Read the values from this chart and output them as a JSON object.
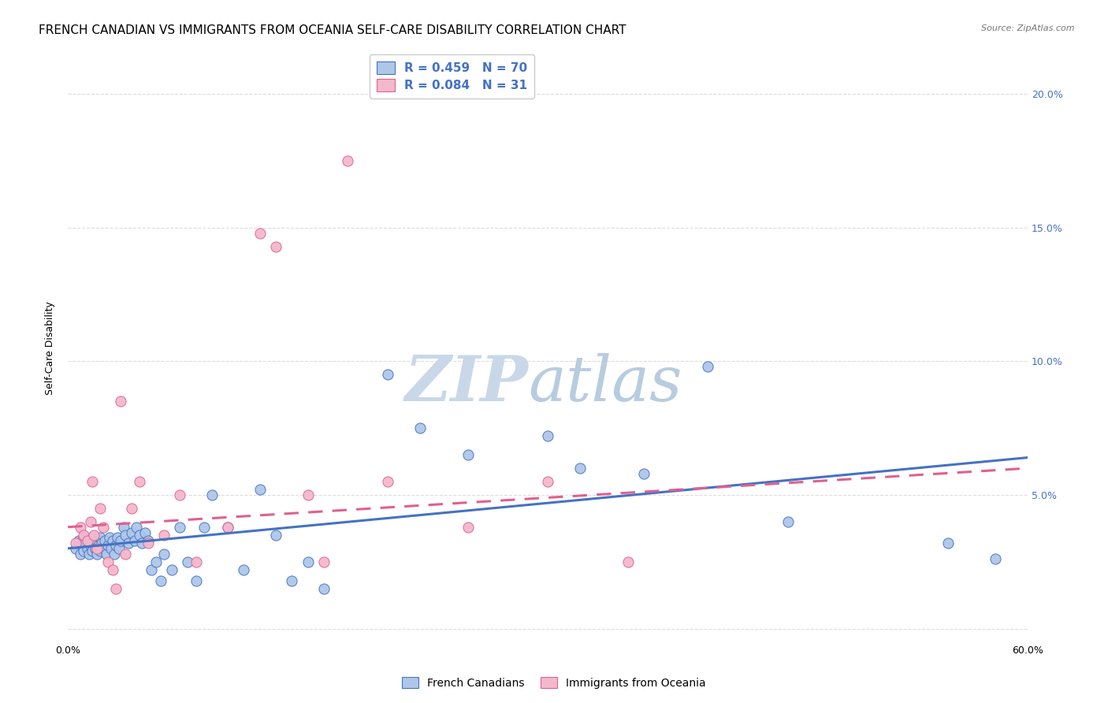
{
  "title": "FRENCH CANADIAN VS IMMIGRANTS FROM OCEANIA SELF-CARE DISABILITY CORRELATION CHART",
  "source": "Source: ZipAtlas.com",
  "ylabel": "Self-Care Disability",
  "x_min": 0.0,
  "x_max": 0.6,
  "y_min": -0.005,
  "y_max": 0.215,
  "blue_color": "#4472c4",
  "pink_color": "#e06090",
  "scatter_blue_color": "#aec6e8",
  "scatter_pink_color": "#f4b8cc",
  "blue_scatter": [
    [
      0.005,
      0.03
    ],
    [
      0.007,
      0.033
    ],
    [
      0.008,
      0.028
    ],
    [
      0.009,
      0.031
    ],
    [
      0.01,
      0.034
    ],
    [
      0.01,
      0.029
    ],
    [
      0.011,
      0.032
    ],
    [
      0.012,
      0.03
    ],
    [
      0.013,
      0.033
    ],
    [
      0.013,
      0.028
    ],
    [
      0.014,
      0.031
    ],
    [
      0.015,
      0.034
    ],
    [
      0.015,
      0.029
    ],
    [
      0.016,
      0.032
    ],
    [
      0.017,
      0.03
    ],
    [
      0.018,
      0.033
    ],
    [
      0.018,
      0.028
    ],
    [
      0.019,
      0.031
    ],
    [
      0.02,
      0.034
    ],
    [
      0.02,
      0.029
    ],
    [
      0.021,
      0.032
    ],
    [
      0.022,
      0.03
    ],
    [
      0.023,
      0.033
    ],
    [
      0.024,
      0.028
    ],
    [
      0.025,
      0.031
    ],
    [
      0.026,
      0.034
    ],
    [
      0.027,
      0.03
    ],
    [
      0.028,
      0.033
    ],
    [
      0.029,
      0.028
    ],
    [
      0.03,
      0.031
    ],
    [
      0.031,
      0.034
    ],
    [
      0.032,
      0.03
    ],
    [
      0.033,
      0.033
    ],
    [
      0.035,
      0.038
    ],
    [
      0.036,
      0.035
    ],
    [
      0.038,
      0.032
    ],
    [
      0.04,
      0.036
    ],
    [
      0.042,
      0.033
    ],
    [
      0.043,
      0.038
    ],
    [
      0.045,
      0.035
    ],
    [
      0.046,
      0.032
    ],
    [
      0.048,
      0.036
    ],
    [
      0.05,
      0.033
    ],
    [
      0.052,
      0.022
    ],
    [
      0.055,
      0.025
    ],
    [
      0.058,
      0.018
    ],
    [
      0.06,
      0.028
    ],
    [
      0.065,
      0.022
    ],
    [
      0.07,
      0.038
    ],
    [
      0.075,
      0.025
    ],
    [
      0.08,
      0.018
    ],
    [
      0.085,
      0.038
    ],
    [
      0.09,
      0.05
    ],
    [
      0.1,
      0.038
    ],
    [
      0.11,
      0.022
    ],
    [
      0.12,
      0.052
    ],
    [
      0.13,
      0.035
    ],
    [
      0.14,
      0.018
    ],
    [
      0.15,
      0.025
    ],
    [
      0.16,
      0.015
    ],
    [
      0.2,
      0.095
    ],
    [
      0.22,
      0.075
    ],
    [
      0.25,
      0.065
    ],
    [
      0.3,
      0.072
    ],
    [
      0.32,
      0.06
    ],
    [
      0.36,
      0.058
    ],
    [
      0.4,
      0.098
    ],
    [
      0.45,
      0.04
    ],
    [
      0.55,
      0.032
    ],
    [
      0.58,
      0.026
    ]
  ],
  "pink_scatter": [
    [
      0.005,
      0.032
    ],
    [
      0.008,
      0.038
    ],
    [
      0.01,
      0.035
    ],
    [
      0.012,
      0.033
    ],
    [
      0.014,
      0.04
    ],
    [
      0.015,
      0.055
    ],
    [
      0.016,
      0.035
    ],
    [
      0.018,
      0.03
    ],
    [
      0.02,
      0.045
    ],
    [
      0.022,
      0.038
    ],
    [
      0.025,
      0.025
    ],
    [
      0.028,
      0.022
    ],
    [
      0.03,
      0.015
    ],
    [
      0.033,
      0.085
    ],
    [
      0.036,
      0.028
    ],
    [
      0.04,
      0.045
    ],
    [
      0.045,
      0.055
    ],
    [
      0.05,
      0.032
    ],
    [
      0.06,
      0.035
    ],
    [
      0.07,
      0.05
    ],
    [
      0.08,
      0.025
    ],
    [
      0.1,
      0.038
    ],
    [
      0.12,
      0.148
    ],
    [
      0.13,
      0.143
    ],
    [
      0.15,
      0.05
    ],
    [
      0.16,
      0.025
    ],
    [
      0.175,
      0.175
    ],
    [
      0.2,
      0.055
    ],
    [
      0.25,
      0.038
    ],
    [
      0.3,
      0.055
    ],
    [
      0.35,
      0.025
    ]
  ],
  "blue_line_x": [
    0.0,
    0.6
  ],
  "blue_line_y": [
    0.03,
    0.064
  ],
  "pink_line_x": [
    0.0,
    0.6
  ],
  "pink_line_y": [
    0.038,
    0.06
  ],
  "background_color": "#ffffff",
  "grid_color": "#dddddd",
  "watermark_zip": "ZIP",
  "watermark_atlas": "atlas",
  "watermark_color": "#c8d8e8",
  "title_fontsize": 11,
  "axis_label_fontsize": 9,
  "tick_fontsize": 9,
  "legend_series": [
    {
      "label": "French Canadians",
      "R": 0.459,
      "N": 70
    },
    {
      "label": "Immigrants from Oceania",
      "R": 0.084,
      "N": 31
    }
  ]
}
